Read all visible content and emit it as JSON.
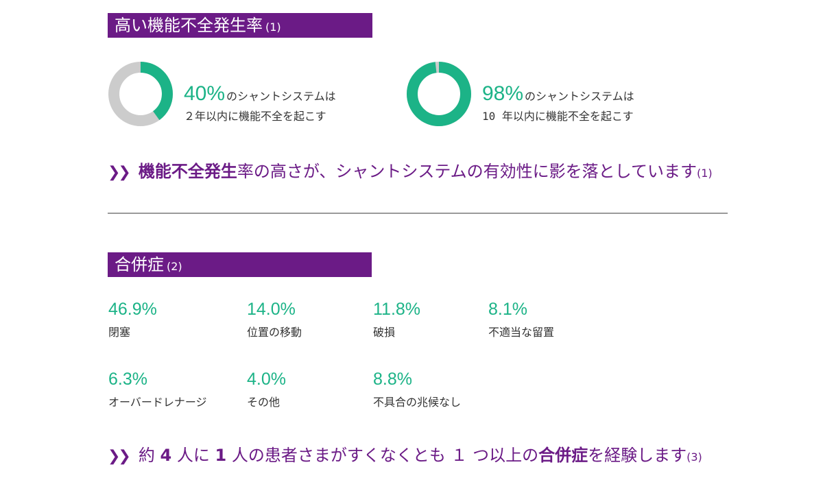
{
  "section1": {
    "title": "高い機能不全発生率",
    "ref": "(1)",
    "stats": [
      {
        "percent": "40%",
        "line1": "のシャントシステムは",
        "line2": "２年以内に機能不全を起こす",
        "fraction": 0.4
      },
      {
        "percent": "98%",
        "line1": "のシャントシステムは",
        "line2": "10 年以内に機能不全を起こす",
        "fraction": 0.98
      }
    ],
    "callout": {
      "bold": "機能不全発生",
      "rest": "率の高さが、シャントシステムの有効性に影を落としています",
      "ref": "(1)"
    }
  },
  "section2": {
    "title": "合併症",
    "ref": "(2)",
    "items": [
      {
        "value": "46.9%",
        "label": "閉塞"
      },
      {
        "value": "14.0%",
        "label": "位置の移動"
      },
      {
        "value": "11.8%",
        "label": "破損"
      },
      {
        "value": "8.1%",
        "label": "不適当な留置"
      },
      {
        "value": "6.3%",
        "label": "オーバードレナージ"
      },
      {
        "value": "4.0%",
        "label": "その他"
      },
      {
        "value": "8.8%",
        "label": "不具合の兆候なし"
      }
    ],
    "callout": {
      "p1": "約",
      "n1": "4",
      "p2": "人に",
      "n2": "1",
      "p3": "人の患者さまがすくなくとも",
      "n3": "１",
      "p4": "つ以上の",
      "bold": "合併症",
      "p5": "を経験します",
      "ref": "(3)"
    }
  },
  "colors": {
    "purple": "#6b1b86",
    "green": "#1cb387",
    "gray": "#cccccc"
  },
  "icons": {
    "callout_marker": "double-chevron-right-icon"
  }
}
